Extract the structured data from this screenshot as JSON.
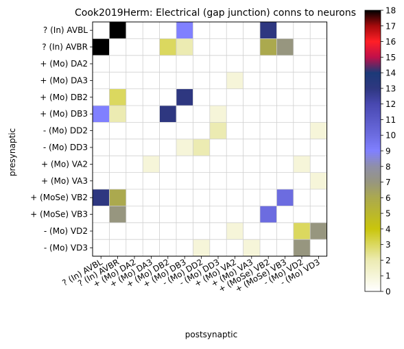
{
  "chart_data": {
    "type": "heatmap",
    "title": "Cook2019Herm: Electrical (gap junction) conns to neurons",
    "xlabel": "postsynaptic",
    "ylabel": "presynaptic",
    "categories_y": [
      "? (In) AVBL",
      "? (In) AVBR",
      "+ (Mo) DA2",
      "+ (Mo) DA3",
      "+ (Mo) DB2",
      "+ (Mo) DB3",
      "- (Mo) DD2",
      "- (Mo) DD3",
      "+ (Mo) VA2",
      "+ (Mo) VA3",
      "+ (MoSe) VB2",
      "+ (MoSe) VB3",
      "- (Mo) VD2",
      "- (Mo) VD3"
    ],
    "categories_x": [
      "? (In) AVBL",
      "? (In) AVBR",
      "+ (Mo) DA2",
      "+ (Mo) DA3",
      "+ (Mo) DB2",
      "+ (Mo) DB3",
      "- (Mo) DD2",
      "- (Mo) DD3",
      "+ (Mo) VA2",
      "+ (Mo) VA3",
      "+ (MoSe) VB2",
      "+ (MoSe) VB3",
      "- (Mo) VD2",
      "- (Mo) VD3"
    ],
    "values": [
      [
        0,
        18,
        0,
        0,
        0,
        9,
        0,
        0,
        0,
        0,
        13,
        0,
        0,
        0
      ],
      [
        18,
        0,
        0,
        0,
        3,
        2,
        0,
        0,
        0,
        0,
        6,
        7,
        0,
        0
      ],
      [
        0,
        0,
        0,
        0,
        0,
        0,
        0,
        0,
        0,
        0,
        0,
        0,
        0,
        0
      ],
      [
        0,
        0,
        0,
        0,
        0,
        0,
        0,
        0,
        1,
        0,
        0,
        0,
        0,
        0
      ],
      [
        0,
        3,
        0,
        0,
        0,
        13,
        0,
        0,
        0,
        0,
        0,
        0,
        0,
        0
      ],
      [
        9,
        2,
        0,
        0,
        13,
        0,
        0,
        1,
        0,
        0,
        0,
        0,
        0,
        0
      ],
      [
        0,
        0,
        0,
        0,
        0,
        0,
        0,
        2,
        0,
        0,
        0,
        0,
        0,
        1
      ],
      [
        0,
        0,
        0,
        0,
        0,
        1,
        2,
        0,
        0,
        0,
        0,
        0,
        0,
        0
      ],
      [
        0,
        0,
        0,
        1,
        0,
        0,
        0,
        0,
        0,
        0,
        0,
        0,
        1,
        0
      ],
      [
        0,
        0,
        0,
        0,
        0,
        0,
        0,
        0,
        0,
        0,
        0,
        0,
        0,
        1
      ],
      [
        13,
        6,
        0,
        0,
        0,
        0,
        0,
        0,
        0,
        0,
        0,
        10,
        0,
        0
      ],
      [
        0,
        7,
        0,
        0,
        0,
        0,
        0,
        0,
        0,
        0,
        10,
        0,
        0,
        0
      ],
      [
        0,
        0,
        0,
        0,
        0,
        0,
        0,
        0,
        1,
        0,
        0,
        0,
        3,
        7
      ],
      [
        0,
        0,
        0,
        0,
        0,
        0,
        1,
        0,
        0,
        1,
        0,
        0,
        7,
        0
      ]
    ],
    "colorbar": {
      "min": 0,
      "max": 18,
      "ticks": [
        0,
        1,
        2,
        3,
        4,
        5,
        6,
        7,
        8,
        9,
        10,
        11,
        12,
        13,
        14,
        15,
        16,
        17,
        18
      ],
      "colors": [
        [
          0,
          "#ffffff"
        ],
        [
          2,
          "#ecebb2"
        ],
        [
          4,
          "#c9c50c"
        ],
        [
          6,
          "#aba94e"
        ],
        [
          7,
          "#97967f"
        ],
        [
          8,
          "#8f8fa8"
        ],
        [
          9,
          "#8080ff"
        ],
        [
          10,
          "#6c6ce0"
        ],
        [
          12,
          "#4848b0"
        ],
        [
          13,
          "#2e3780"
        ],
        [
          14,
          "#1c3a78"
        ],
        [
          15,
          "#c0104a"
        ],
        [
          16,
          "#ff1f26"
        ],
        [
          17,
          "#a50a0c"
        ],
        [
          18,
          "#000000"
        ]
      ]
    },
    "grid": true
  }
}
